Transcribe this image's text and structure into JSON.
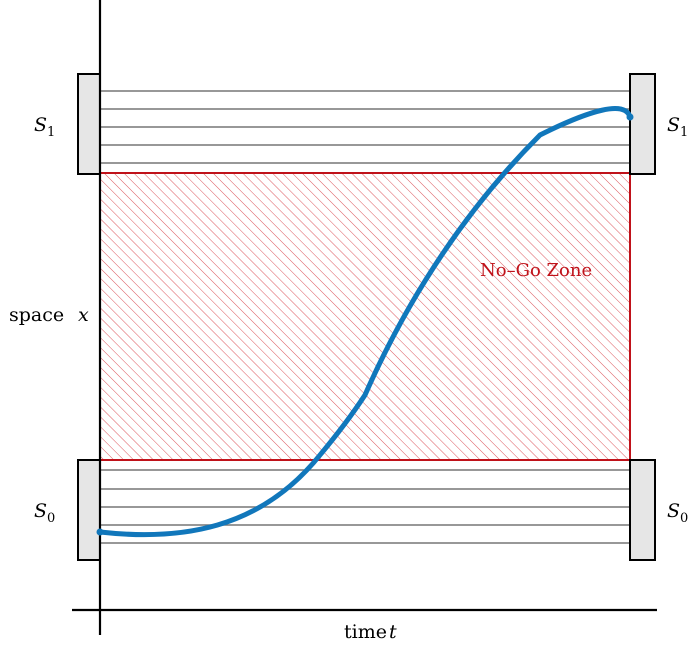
{
  "labels": {
    "s1_left_base": "S",
    "s1_left_sub": "1",
    "s1_right_base": "S",
    "s1_right_sub": "1",
    "s0_left_base": "S",
    "s0_left_sub": "0",
    "s0_right_base": "S",
    "s0_right_sub": "0",
    "space_text": "space",
    "space_var": "x",
    "time_text": "time",
    "time_var": "t",
    "zone": "No–Go Zone"
  },
  "colors": {
    "zone": "#c0121a",
    "trajectory": "#1177bb",
    "lanes": "#777777",
    "blocks_fill": "#e6e6e6",
    "axes": "#000000"
  }
}
